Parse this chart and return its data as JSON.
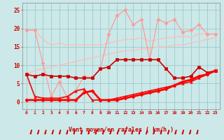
{
  "x": [
    0,
    1,
    2,
    3,
    4,
    5,
    6,
    7,
    8,
    9,
    10,
    11,
    12,
    13,
    14,
    15,
    16,
    17,
    18,
    19,
    20,
    21,
    22,
    23
  ],
  "background_color": "#cce8e8",
  "grid_color": "#99cccc",
  "xlabel": "Vent moyen/en rafales ( km/h )",
  "xlabel_color": "#cc0000",
  "tick_color": "#cc0000",
  "arrow_color": "#cc0000",
  "series": [
    {
      "name": "max_gusts_pink",
      "y": [
        19.5,
        19.5,
        10.5,
        1.5,
        5.5,
        1.0,
        3.0,
        7.0,
        6.5,
        9.0,
        18.5,
        23.5,
        25.0,
        21.0,
        22.5,
        11.5,
        22.5,
        21.5,
        22.5,
        19.0,
        19.5,
        21.0,
        18.5,
        18.5
      ],
      "color": "#ff9999",
      "lw": 0.9,
      "marker": "D",
      "ms": 2.5,
      "zorder": 3
    },
    {
      "name": "upper_envelope",
      "y": [
        19.5,
        19.5,
        17.0,
        15.5,
        16.0,
        15.5,
        15.5,
        15.5,
        15.5,
        15.5,
        16.0,
        16.5,
        17.0,
        17.0,
        17.5,
        16.5,
        17.0,
        17.5,
        17.5,
        18.0,
        17.5,
        18.5,
        18.5,
        18.5
      ],
      "color": "#ffbbbb",
      "lw": 0.9,
      "marker": null,
      "ms": 0,
      "zorder": 2
    },
    {
      "name": "lower_envelope",
      "y": [
        7.5,
        8.5,
        9.0,
        9.5,
        10.0,
        10.5,
        11.0,
        11.5,
        12.0,
        12.5,
        13.0,
        13.5,
        14.0,
        14.0,
        14.5,
        14.5,
        15.0,
        15.0,
        15.5,
        15.5,
        16.0,
        16.5,
        17.0,
        17.5
      ],
      "color": "#ffbbbb",
      "lw": 0.9,
      "marker": null,
      "ms": 0,
      "zorder": 2
    },
    {
      "name": "median_square",
      "y": [
        7.5,
        7.0,
        7.5,
        7.0,
        7.0,
        7.0,
        6.5,
        6.5,
        6.5,
        9.0,
        9.5,
        11.5,
        11.5,
        11.5,
        11.5,
        11.5,
        11.5,
        9.0,
        6.5,
        6.5,
        7.0,
        9.5,
        8.0,
        8.5
      ],
      "color": "#cc0000",
      "lw": 1.2,
      "marker": "s",
      "ms": 2.5,
      "zorder": 5
    },
    {
      "name": "triangle_line",
      "y": [
        7.5,
        1.5,
        1.0,
        1.0,
        1.0,
        1.5,
        3.0,
        3.5,
        0.5,
        0.5,
        0.5,
        1.0,
        1.5,
        2.0,
        2.5,
        3.0,
        3.5,
        4.0,
        4.5,
        5.0,
        5.5,
        6.5,
        7.5,
        8.5
      ],
      "color": "#ee1111",
      "lw": 1.3,
      "marker": "^",
      "ms": 2.5,
      "zorder": 4
    },
    {
      "name": "diamond_red_line",
      "y": [
        0.5,
        0.5,
        0.5,
        0.5,
        0.5,
        0.5,
        0.5,
        2.5,
        3.0,
        0.5,
        0.5,
        0.5,
        1.0,
        1.5,
        2.0,
        2.5,
        3.0,
        3.5,
        4.5,
        5.5,
        6.0,
        7.0,
        7.5,
        8.5
      ],
      "color": "#ff0000",
      "lw": 2.0,
      "marker": "D",
      "ms": 2.5,
      "zorder": 6
    }
  ],
  "ylim": [
    -2,
    27
  ],
  "yticks": [
    0,
    5,
    10,
    15,
    20,
    25
  ],
  "xlim": [
    -0.5,
    23.5
  ],
  "figsize": [
    3.2,
    2.0
  ],
  "dpi": 100
}
